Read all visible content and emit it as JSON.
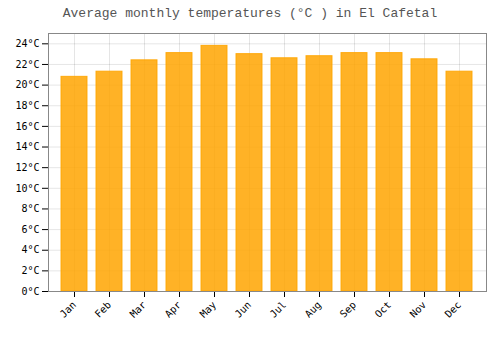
{
  "chart_data": {
    "type": "bar",
    "title": "Average monthly temperatures (°C ) in El Cafetal",
    "categories": [
      "Jan",
      "Feb",
      "Mar",
      "Apr",
      "May",
      "Jun",
      "Jul",
      "Aug",
      "Sep",
      "Oct",
      "Nov",
      "Dec"
    ],
    "values": [
      20.8,
      21.3,
      22.4,
      23.1,
      23.8,
      23.0,
      22.6,
      22.8,
      23.1,
      23.1,
      22.5,
      21.3
    ],
    "color": "#FFA500",
    "ylim": [
      0,
      25
    ],
    "yticks": [
      {
        "value": 0,
        "label": "0°C"
      },
      {
        "value": 2,
        "label": "2°C"
      },
      {
        "value": 4,
        "label": "4°C"
      },
      {
        "value": 6,
        "label": "6°C"
      },
      {
        "value": 8,
        "label": "8°C"
      },
      {
        "value": 10,
        "label": "10°C"
      },
      {
        "value": 12,
        "label": "12°C"
      },
      {
        "value": 14,
        "label": "14°C"
      },
      {
        "value": 16,
        "label": "16°C"
      },
      {
        "value": 18,
        "label": "18°C"
      },
      {
        "value": 20,
        "label": "20°C"
      },
      {
        "value": 22,
        "label": "22°C"
      },
      {
        "value": 24,
        "label": "24°C"
      }
    ],
    "grid": true
  }
}
